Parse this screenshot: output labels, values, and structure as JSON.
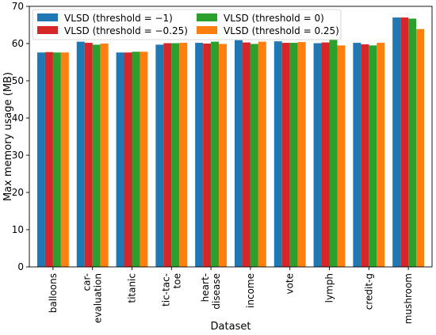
{
  "chart_data": {
    "type": "bar",
    "title": "",
    "xlabel": "Dataset",
    "ylabel": "Max memory usage (MB)",
    "ylim": [
      0,
      70
    ],
    "yticks": [
      0,
      10,
      20,
      30,
      40,
      50,
      60,
      70
    ],
    "grid": false,
    "legend_position": "top-left",
    "categories": [
      [
        "balloons"
      ],
      [
        "car-",
        "evaluation"
      ],
      [
        "titanic"
      ],
      [
        "tic-tac-",
        "toe"
      ],
      [
        "heart-",
        "disease"
      ],
      [
        "income"
      ],
      [
        "vote"
      ],
      [
        "lymph"
      ],
      [
        "credit-g"
      ],
      [
        "mushroom"
      ]
    ],
    "series": [
      {
        "name": "VLSD (threshold = −1)",
        "color": "#1f77b4",
        "values": [
          57.6,
          60.5,
          57.6,
          59.7,
          60.2,
          60.9,
          60.6,
          60.1,
          60.2,
          67.0
        ]
      },
      {
        "name": "VLSD (threshold = −0.25)",
        "color": "#d62728",
        "values": [
          57.7,
          60.2,
          57.6,
          60.1,
          60.0,
          60.3,
          60.2,
          60.3,
          59.8,
          67.0
        ]
      },
      {
        "name": "VLSD (threshold = 0)",
        "color": "#2ca02c",
        "values": [
          57.6,
          59.7,
          57.8,
          60.1,
          60.5,
          59.9,
          60.2,
          61.0,
          59.5,
          66.7
        ]
      },
      {
        "name": "VLSD (threshold = 0.25)",
        "color": "#ff7f0e",
        "values": [
          57.6,
          60.0,
          57.8,
          60.2,
          59.9,
          60.5,
          60.4,
          59.5,
          60.2,
          63.9
        ]
      }
    ]
  }
}
